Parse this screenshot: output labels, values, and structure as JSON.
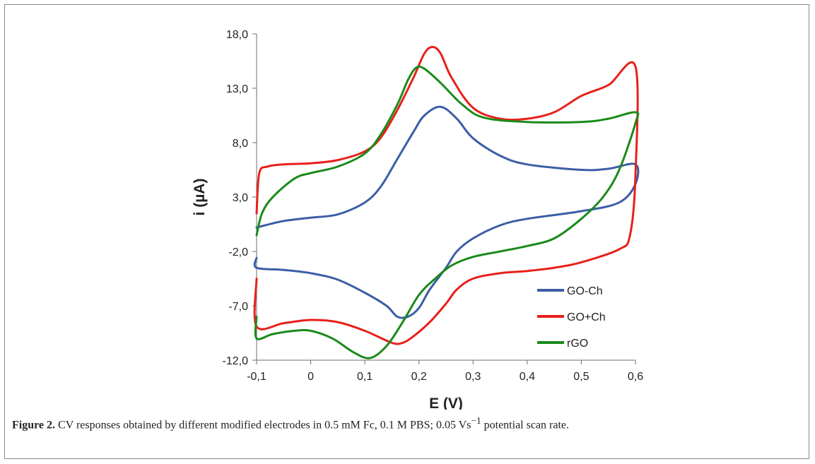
{
  "caption": {
    "label": "Figure 2.",
    "text_before_sup": "CV responses obtained by different modified electrodes in 0.5 mM Fc, 0.1 M PBS; 0.05 Vs",
    "sup": "−1",
    "text_after_sup": " potential scan rate."
  },
  "chart_data": {
    "type": "line",
    "xlabel": "E (V)",
    "ylabel": "i (µA)",
    "xlim": [
      -0.1,
      0.6
    ],
    "ylim": [
      -12.0,
      18.0
    ],
    "xticks": [
      -0.1,
      0,
      0.1,
      0.2,
      0.3,
      0.4,
      0.5,
      0.6
    ],
    "xtick_labels": [
      "-0,1",
      "0",
      "0,1",
      "0,2",
      "0,3",
      "0,4",
      "0,5",
      "0,6"
    ],
    "yticks": [
      -12,
      -7,
      -2,
      3,
      8,
      13,
      18
    ],
    "ytick_labels": [
      "-12,0",
      "-7,0",
      "-2,0",
      "3,0",
      "8,0",
      "13,0",
      "18,0"
    ],
    "grid": false,
    "legend_position": "bottom-right",
    "series": [
      {
        "name": "GO-Ch",
        "color": "#3b5ea6",
        "points": [
          [
            -0.1,
            0.2
          ],
          [
            -0.05,
            0.8
          ],
          [
            0,
            1.1
          ],
          [
            0.05,
            1.4
          ],
          [
            0.1,
            2.5
          ],
          [
            0.13,
            4.0
          ],
          [
            0.16,
            6.5
          ],
          [
            0.19,
            9.0
          ],
          [
            0.21,
            10.5
          ],
          [
            0.24,
            11.3
          ],
          [
            0.27,
            10.2
          ],
          [
            0.3,
            8.4
          ],
          [
            0.35,
            6.8
          ],
          [
            0.4,
            6.0
          ],
          [
            0.5,
            5.5
          ],
          [
            0.55,
            5.6
          ],
          [
            0.6,
            6.0
          ],
          [
            0.6,
            4.2
          ],
          [
            0.57,
            2.5
          ],
          [
            0.5,
            1.7
          ],
          [
            0.4,
            1.0
          ],
          [
            0.35,
            0.4
          ],
          [
            0.3,
            -0.8
          ],
          [
            0.27,
            -2.0
          ],
          [
            0.25,
            -3.5
          ],
          [
            0.22,
            -5.5
          ],
          [
            0.2,
            -7.2
          ],
          [
            0.18,
            -8.0
          ],
          [
            0.16,
            -8.0
          ],
          [
            0.14,
            -7.0
          ],
          [
            0.1,
            -5.8
          ],
          [
            0.05,
            -4.6
          ],
          [
            0,
            -4.0
          ],
          [
            -0.05,
            -3.7
          ],
          [
            -0.1,
            -3.5
          ],
          [
            -0.1,
            -2.6
          ]
        ]
      },
      {
        "name": "GO+Ch",
        "color": "#e8201a",
        "points": [
          [
            -0.1,
            1.5
          ],
          [
            -0.095,
            5.2
          ],
          [
            -0.08,
            5.8
          ],
          [
            -0.05,
            6.0
          ],
          [
            0,
            6.1
          ],
          [
            0.05,
            6.4
          ],
          [
            0.1,
            7.2
          ],
          [
            0.13,
            8.5
          ],
          [
            0.16,
            11.0
          ],
          [
            0.19,
            14.0
          ],
          [
            0.21,
            16.2
          ],
          [
            0.225,
            16.8
          ],
          [
            0.24,
            16.2
          ],
          [
            0.26,
            14.0
          ],
          [
            0.3,
            11.2
          ],
          [
            0.35,
            10.2
          ],
          [
            0.4,
            10.2
          ],
          [
            0.45,
            10.8
          ],
          [
            0.5,
            12.3
          ],
          [
            0.55,
            13.3
          ],
          [
            0.6,
            15.0
          ],
          [
            0.6,
            5.0
          ],
          [
            0.59,
            -0.5
          ],
          [
            0.57,
            -1.8
          ],
          [
            0.5,
            -3.0
          ],
          [
            0.45,
            -3.5
          ],
          [
            0.4,
            -3.8
          ],
          [
            0.35,
            -4.0
          ],
          [
            0.3,
            -4.5
          ],
          [
            0.27,
            -5.5
          ],
          [
            0.25,
            -6.8
          ],
          [
            0.22,
            -8.5
          ],
          [
            0.19,
            -9.8
          ],
          [
            0.17,
            -10.4
          ],
          [
            0.15,
            -10.4
          ],
          [
            0.1,
            -9.3
          ],
          [
            0.05,
            -8.5
          ],
          [
            0,
            -8.3
          ],
          [
            -0.05,
            -8.6
          ],
          [
            -0.1,
            -8.9
          ],
          [
            -0.1,
            -4.5
          ]
        ]
      },
      {
        "name": "rGO",
        "color": "#1a8a1a",
        "points": [
          [
            -0.1,
            -0.5
          ],
          [
            -0.09,
            1.5
          ],
          [
            -0.07,
            3.0
          ],
          [
            -0.03,
            4.7
          ],
          [
            0,
            5.2
          ],
          [
            0.05,
            5.8
          ],
          [
            0.1,
            7.0
          ],
          [
            0.13,
            8.8
          ],
          [
            0.16,
            11.5
          ],
          [
            0.18,
            13.8
          ],
          [
            0.195,
            14.9
          ],
          [
            0.21,
            14.8
          ],
          [
            0.24,
            13.5
          ],
          [
            0.28,
            11.5
          ],
          [
            0.32,
            10.3
          ],
          [
            0.4,
            9.9
          ],
          [
            0.5,
            9.9
          ],
          [
            0.55,
            10.2
          ],
          [
            0.6,
            10.8
          ],
          [
            0.6,
            9.8
          ],
          [
            0.57,
            5.5
          ],
          [
            0.54,
            3.0
          ],
          [
            0.5,
            1.0
          ],
          [
            0.45,
            -0.8
          ],
          [
            0.4,
            -1.5
          ],
          [
            0.35,
            -2.0
          ],
          [
            0.3,
            -2.5
          ],
          [
            0.26,
            -3.3
          ],
          [
            0.23,
            -4.5
          ],
          [
            0.2,
            -6.0
          ],
          [
            0.17,
            -8.5
          ],
          [
            0.14,
            -10.7
          ],
          [
            0.11,
            -11.8
          ],
          [
            0.08,
            -11.3
          ],
          [
            0.04,
            -10.0
          ],
          [
            0,
            -9.3
          ],
          [
            -0.03,
            -9.3
          ],
          [
            -0.07,
            -9.6
          ],
          [
            -0.1,
            -10.0
          ],
          [
            -0.1,
            -8.0
          ]
        ]
      }
    ]
  }
}
